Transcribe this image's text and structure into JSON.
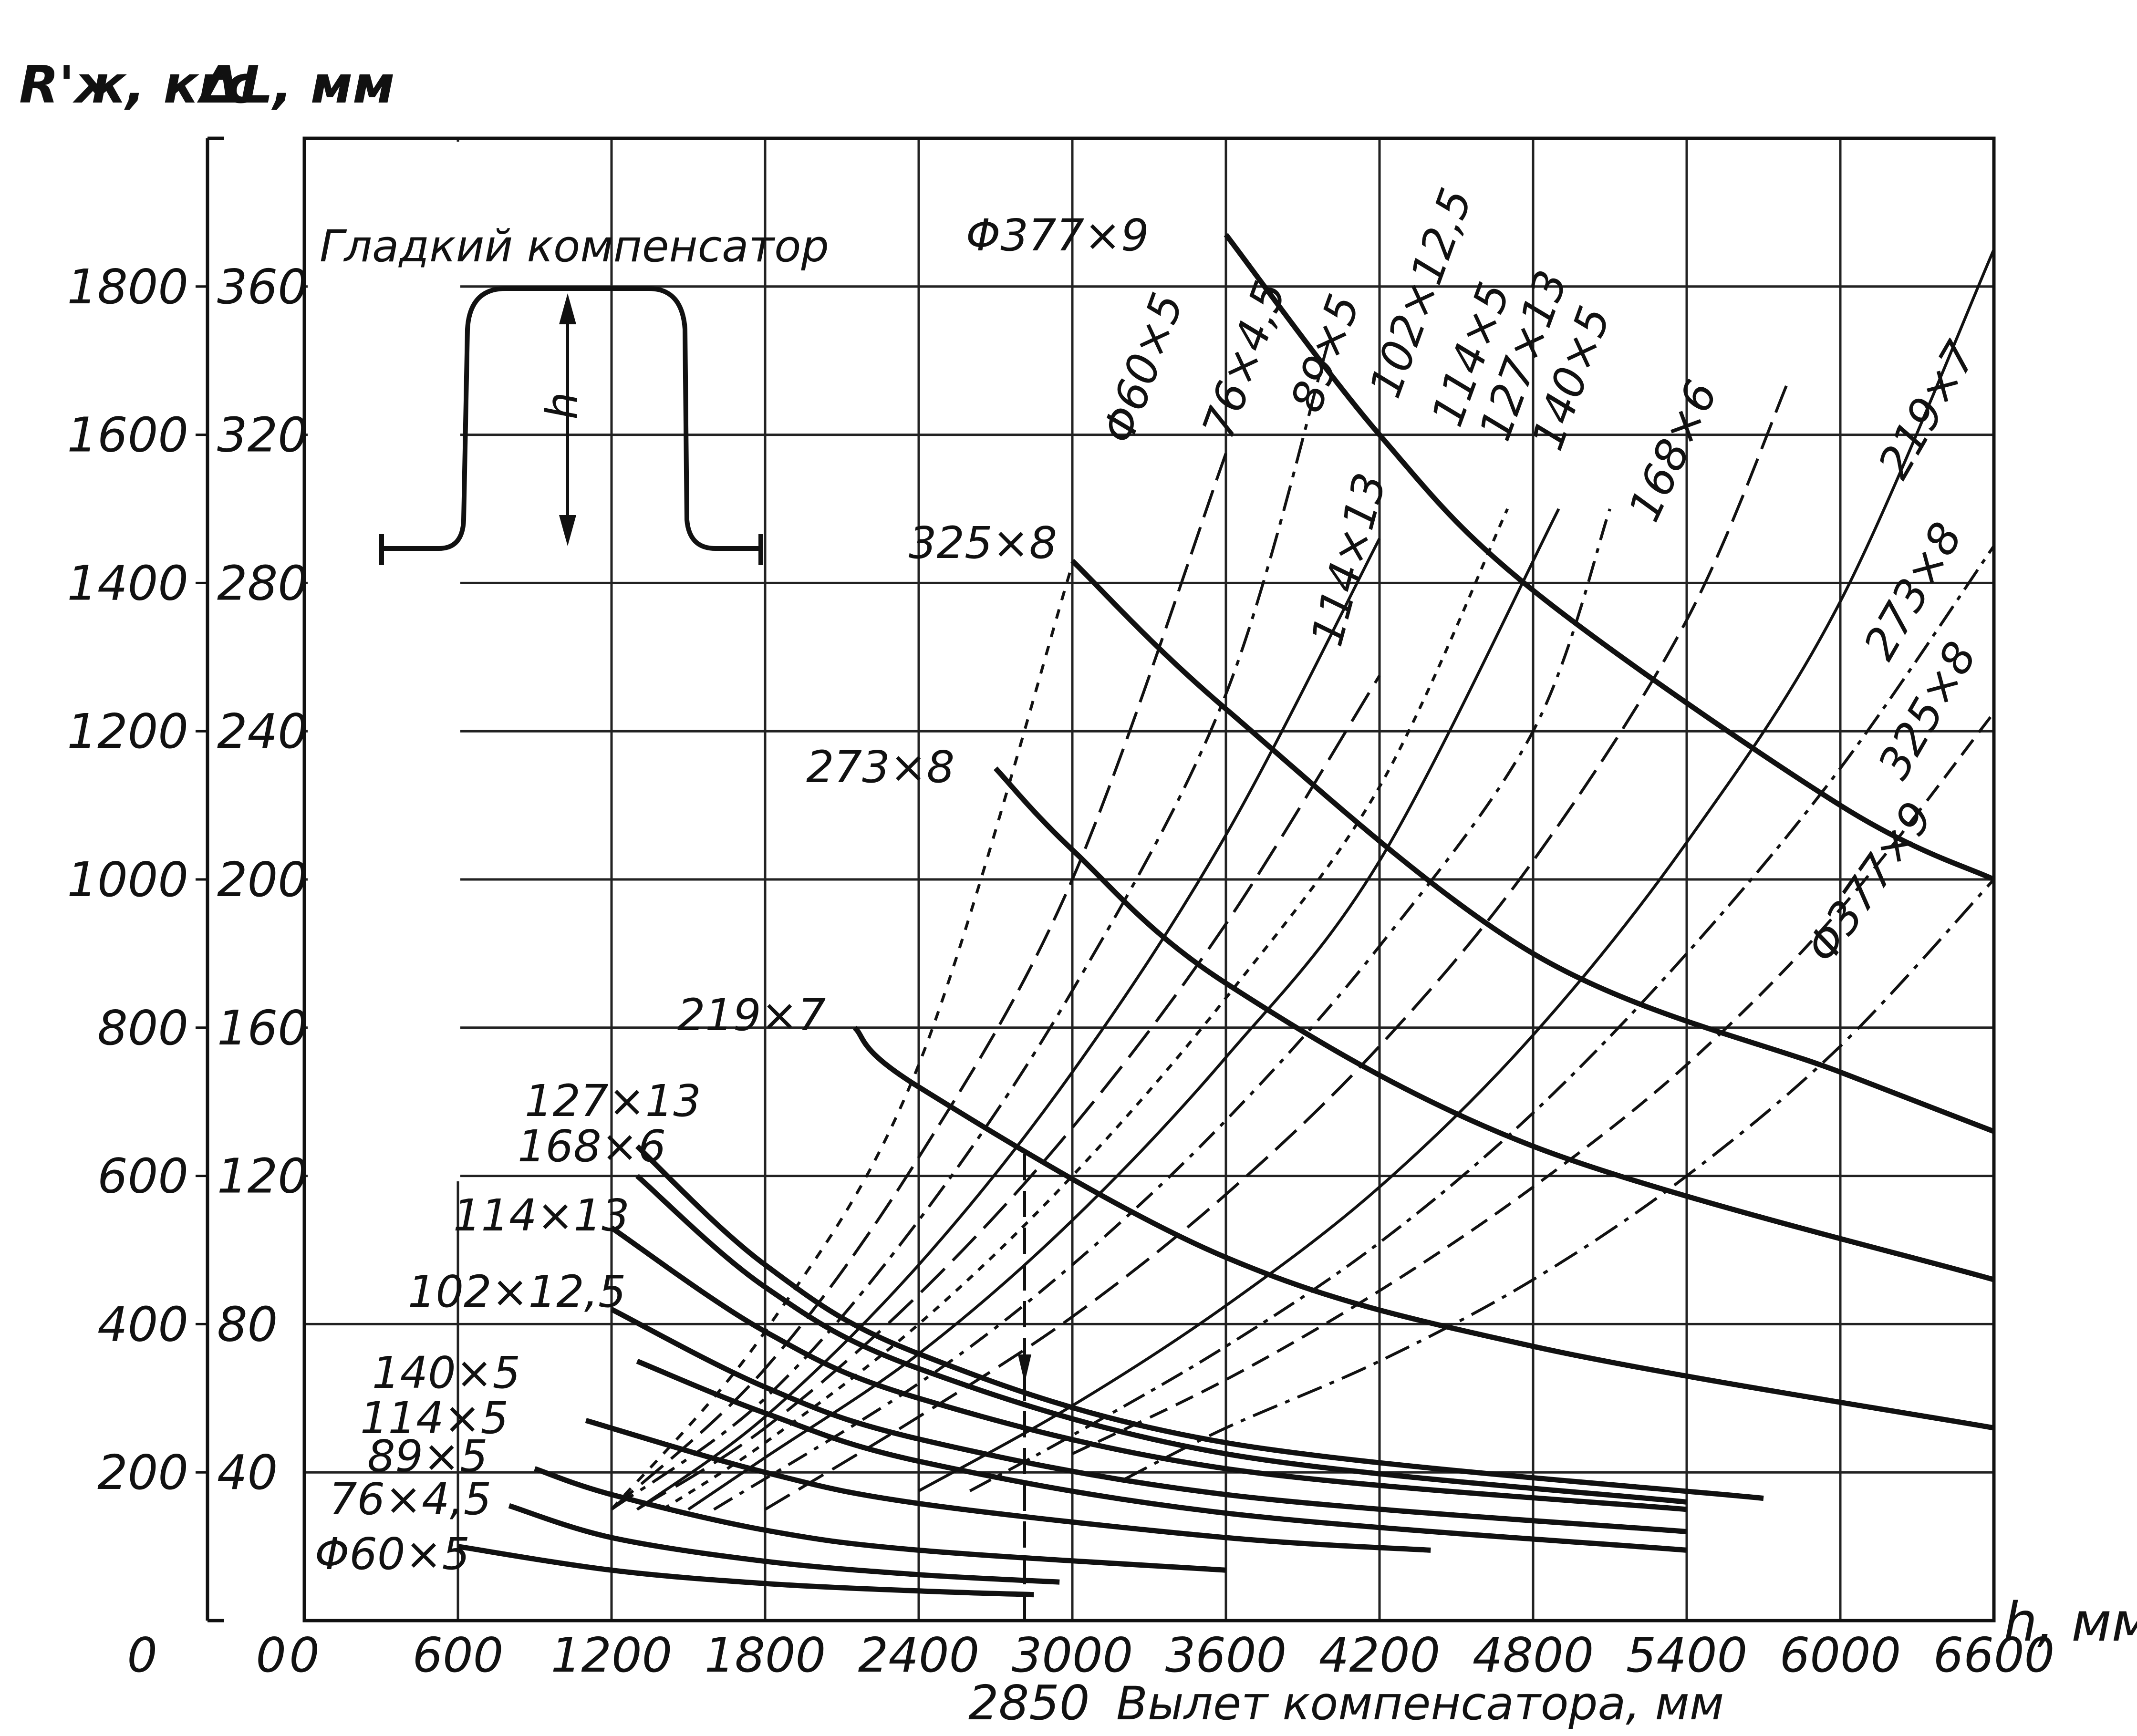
{
  "chart_data": {
    "type": "line",
    "title": "Гладкий компенсатор",
    "inset_label": "h",
    "y_label_force": "R'ж, кгс",
    "y_label_elongation": "ΔL, мм",
    "x_label": "Вылет компенсатора, мм",
    "x_axis_symbol": "h, мм",
    "x_marker_value": "2850",
    "x_ticks": [
      "0",
      "600",
      "1200",
      "1800",
      "2400",
      "3000",
      "3600",
      "4200",
      "4800",
      "5400",
      "6000",
      "6600"
    ],
    "y_ticks_force": [
      "0",
      "200",
      "400",
      "600",
      "800",
      "1000",
      "1200",
      "1400",
      "1600",
      "1800"
    ],
    "y_ticks_elongation": [
      "0",
      "40",
      "80",
      "120",
      "160",
      "200",
      "240",
      "280",
      "320",
      "360"
    ],
    "x_range": [
      0,
      6600
    ],
    "y_range_force": [
      0,
      2000
    ],
    "grid": true,
    "force_series": [
      {
        "name": "Φ60×5",
        "label": "Φ60×5",
        "x": [
          600,
          1200,
          1800,
          2400,
          2850
        ],
        "y": [
          100,
          68,
          50,
          40,
          35
        ]
      },
      {
        "name": "76×4,5",
        "label": "76×4,5",
        "x": [
          800,
          1200,
          1800,
          2400,
          2950
        ],
        "y": [
          155,
          112,
          80,
          62,
          52
        ]
      },
      {
        "name": "89×5",
        "label": "89×5",
        "x": [
          900,
          1200,
          1800,
          2400,
          3600
        ],
        "y": [
          205,
          170,
          122,
          95,
          68
        ]
      },
      {
        "name": "114×5",
        "label": "114×5",
        "x": [
          1100,
          1800,
          2400,
          3600,
          4400
        ],
        "y": [
          270,
          200,
          158,
          112,
          95
        ]
      },
      {
        "name": "140×5",
        "label": "140×5",
        "x": [
          1300,
          1800,
          2400,
          3600,
          5400
        ],
        "y": [
          350,
          280,
          215,
          145,
          95
        ]
      },
      {
        "name": "102×12,5",
        "label": "102×12,5",
        "x": [
          1200,
          1800,
          2400,
          3600,
          5400
        ],
        "y": [
          420,
          315,
          245,
          170,
          120
        ]
      },
      {
        "name": "114×13",
        "label": "114×13",
        "x": [
          1200,
          1800,
          2400,
          3600,
          5400
        ],
        "y": [
          530,
          390,
          300,
          205,
          150
        ]
      },
      {
        "name": "168×6",
        "label": "168×6",
        "x": [
          1300,
          1800,
          2400,
          3600,
          5400
        ],
        "y": [
          600,
          450,
          340,
          225,
          160
        ]
      },
      {
        "name": "127×13",
        "label": "127×13",
        "x": [
          1300,
          1800,
          2400,
          3600,
          5700
        ],
        "y": [
          640,
          480,
          360,
          240,
          165
        ]
      },
      {
        "name": "219×7",
        "label": "219×7",
        "x": [
          2150,
          2400,
          3600,
          4800,
          6600
        ],
        "y": [
          800,
          720,
          490,
          370,
          260
        ]
      },
      {
        "name": "273×8",
        "label": "273×8",
        "x": [
          2700,
          3000,
          3600,
          4800,
          6600
        ],
        "y": [
          1150,
          1040,
          860,
          640,
          460
        ]
      },
      {
        "name": "325×8",
        "label": "325×8",
        "x": [
          3000,
          3600,
          4800,
          6000,
          6600
        ],
        "y": [
          1430,
          1230,
          900,
          740,
          660
        ]
      },
      {
        "name": "Φ377×9",
        "label": "Φ377×9",
        "x": [
          3600,
          4200,
          4800,
          6000,
          6600
        ],
        "y": [
          1870,
          1600,
          1390,
          1100,
          1000
        ]
      }
    ],
    "elongation_series": [
      {
        "name": "Φ60×5",
        "label": "Φ60×5",
        "x": [
          1200,
          1800,
          2400,
          3000
        ],
        "y": [
          30,
          78,
          150,
          285
        ]
      },
      {
        "name": "76×4,5",
        "label": "76×4,5",
        "x": [
          1200,
          1800,
          2400,
          3000,
          3600
        ],
        "y": [
          30,
          68,
          125,
          200,
          315
        ]
      },
      {
        "name": "89×5",
        "label": "89×5",
        "x": [
          1200,
          1800,
          2400,
          3000,
          3600,
          4000
        ],
        "y": [
          30,
          60,
          108,
          170,
          250,
          345
        ]
      },
      {
        "name": "102×12,5",
        "label": "102×12,5",
        "x": [
          1300,
          1800,
          2400,
          3000,
          3600,
          4200
        ],
        "y": [
          30,
          55,
          96,
          148,
          212,
          292
        ]
      },
      {
        "name": "114×13",
        "label": "114×13",
        "x": [
          1300,
          1800,
          2400,
          3000,
          3600,
          4200
        ],
        "y": [
          30,
          52,
          88,
          133,
          188,
          255
        ]
      },
      {
        "name": "114×5",
        "label": "114×5",
        "x": [
          1400,
          1800,
          2400,
          3000,
          3600,
          4200,
          4700
        ],
        "y": [
          30,
          48,
          80,
          120,
          168,
          225,
          300
        ]
      },
      {
        "name": "127×13",
        "label": "127×13",
        "x": [
          1500,
          1800,
          2400,
          3000,
          3600,
          4200,
          4900
        ],
        "y": [
          30,
          44,
          72,
          108,
          152,
          205,
          300
        ]
      },
      {
        "name": "140×5",
        "label": "140×5",
        "x": [
          1600,
          2400,
          3000,
          3600,
          4200,
          4800,
          5100
        ],
        "y": [
          30,
          64,
          96,
          135,
          182,
          240,
          300
        ]
      },
      {
        "name": "168×6",
        "label": "168×6",
        "x": [
          1800,
          2400,
          3000,
          3600,
          4200,
          4800,
          5400,
          5800
        ],
        "y": [
          30,
          55,
          82,
          115,
          155,
          205,
          270,
          335
        ]
      },
      {
        "name": "219×7",
        "label": "219×7",
        "x": [
          2400,
          3000,
          3600,
          4200,
          4800,
          5400,
          6000,
          6600
        ],
        "y": [
          35,
          58,
          85,
          117,
          158,
          210,
          275,
          370
        ]
      },
      {
        "name": "273×8",
        "label": "273×8",
        "x": [
          2600,
          3000,
          3600,
          4200,
          4800,
          5400,
          6000,
          6600
        ],
        "y": [
          35,
          50,
          74,
          102,
          137,
          180,
          230,
          290
        ]
      },
      {
        "name": "325×8",
        "label": "325×8",
        "x": [
          3000,
          3600,
          4200,
          4800,
          5400,
          6000,
          6600
        ],
        "y": [
          45,
          65,
          89,
          117,
          150,
          192,
          245
        ]
      },
      {
        "name": "Φ377×9",
        "label": "Φ377×9",
        "x": [
          3200,
          3600,
          4200,
          4800,
          5400,
          6000,
          6600
        ],
        "y": [
          38,
          52,
          70,
          92,
          120,
          155,
          200
        ]
      }
    ]
  }
}
